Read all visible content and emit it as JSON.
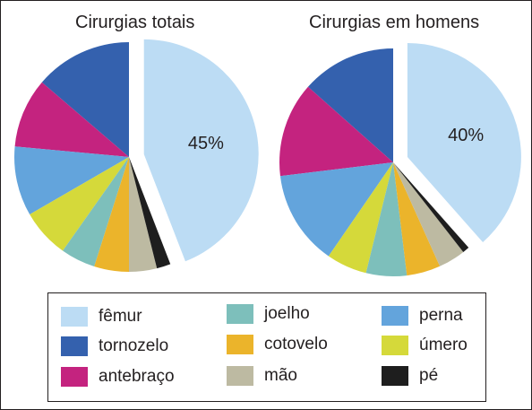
{
  "chart_data": [
    {
      "type": "pie",
      "title": "Cirurgias totais",
      "slices": [
        {
          "label": "fêmur",
          "value": 45,
          "color": "#bcdcf4",
          "exploded": true,
          "shown_label": "45%"
        },
        {
          "label": "tornozelo",
          "value": 14,
          "color": "#3461ae"
        },
        {
          "label": "antebraço",
          "value": 10,
          "color": "#c4237f"
        },
        {
          "label": "perna",
          "value": 10,
          "color": "#63a4dc"
        },
        {
          "label": "úmero",
          "value": 7,
          "color": "#d5d93a"
        },
        {
          "label": "joelho",
          "value": 5,
          "color": "#7dbfbb"
        },
        {
          "label": "cotovelo",
          "value": 5,
          "color": "#ebb42b"
        },
        {
          "label": "mão",
          "value": 4,
          "color": "#bdbaa2"
        },
        {
          "label": "pé",
          "value": 2,
          "color": "#1e1e1e"
        }
      ]
    },
    {
      "type": "pie",
      "title": "Cirurgias em homens",
      "slices": [
        {
          "label": "fêmur",
          "value": 40,
          "color": "#bcdcf4",
          "exploded": true,
          "shown_label": "40%"
        },
        {
          "label": "tornozelo",
          "value": 14,
          "color": "#3461ae"
        },
        {
          "label": "antebraço",
          "value": 14,
          "color": "#c4237f"
        },
        {
          "label": "perna",
          "value": 14,
          "color": "#63a4dc"
        },
        {
          "label": "úmero",
          "value": 6,
          "color": "#d5d93a"
        },
        {
          "label": "joelho",
          "value": 6,
          "color": "#7dbfbb"
        },
        {
          "label": "cotovelo",
          "value": 5,
          "color": "#ebb42b"
        },
        {
          "label": "mão",
          "value": 4,
          "color": "#bdbaa2"
        },
        {
          "label": "pé",
          "value": 1,
          "color": "#1e1e1e"
        }
      ]
    }
  ],
  "legend": {
    "items": [
      {
        "label": "fêmur",
        "color": "#bcdcf4"
      },
      {
        "label": "tornozelo",
        "color": "#3461ae"
      },
      {
        "label": "antebraço",
        "color": "#c4237f"
      },
      {
        "label": "joelho",
        "color": "#7dbfbb"
      },
      {
        "label": "cotovelo",
        "color": "#ebb42b"
      },
      {
        "label": "mão",
        "color": "#bdbaa2"
      },
      {
        "label": "perna",
        "color": "#63a4dc"
      },
      {
        "label": "úmero",
        "color": "#d5d93a"
      },
      {
        "label": "pé",
        "color": "#1e1e1e"
      }
    ]
  }
}
